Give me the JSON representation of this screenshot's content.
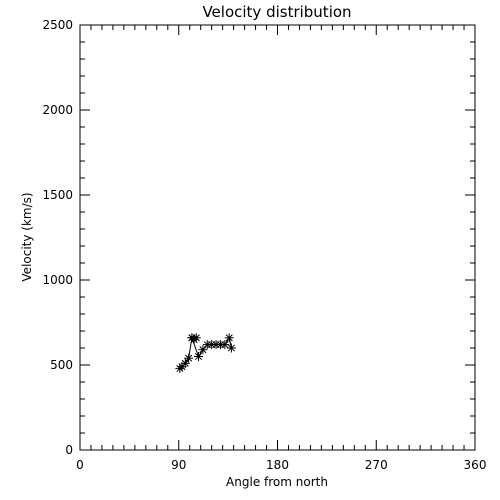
{
  "chart_data": {
    "type": "line",
    "title": "Velocity distribution",
    "xlabel": "Angle from north",
    "ylabel": "Velocity (km/s)",
    "xlim": [
      0,
      360
    ],
    "ylim": [
      0,
      2500
    ],
    "xticks": [
      0,
      90,
      180,
      270,
      360
    ],
    "yticks": [
      0,
      500,
      1000,
      1500,
      2000,
      2500
    ],
    "xtick_labels": [
      "0",
      "90",
      "180",
      "270",
      "360"
    ],
    "ytick_labels": [
      "0",
      "500",
      "1000",
      "1500",
      "2000",
      "2500"
    ],
    "x_minor_step": 10,
    "y_minor_step": 100,
    "grid": false,
    "marker": "asterisk",
    "series": [
      {
        "x": [
          91,
          93,
          96,
          99,
          102,
          106,
          104,
          102,
          108,
          112,
          116,
          120,
          124,
          128,
          132,
          136,
          138
        ],
        "y": [
          480,
          490,
          510,
          540,
          660,
          660,
          650,
          660,
          550,
          590,
          620,
          620,
          620,
          620,
          620,
          660,
          600
        ]
      }
    ]
  }
}
